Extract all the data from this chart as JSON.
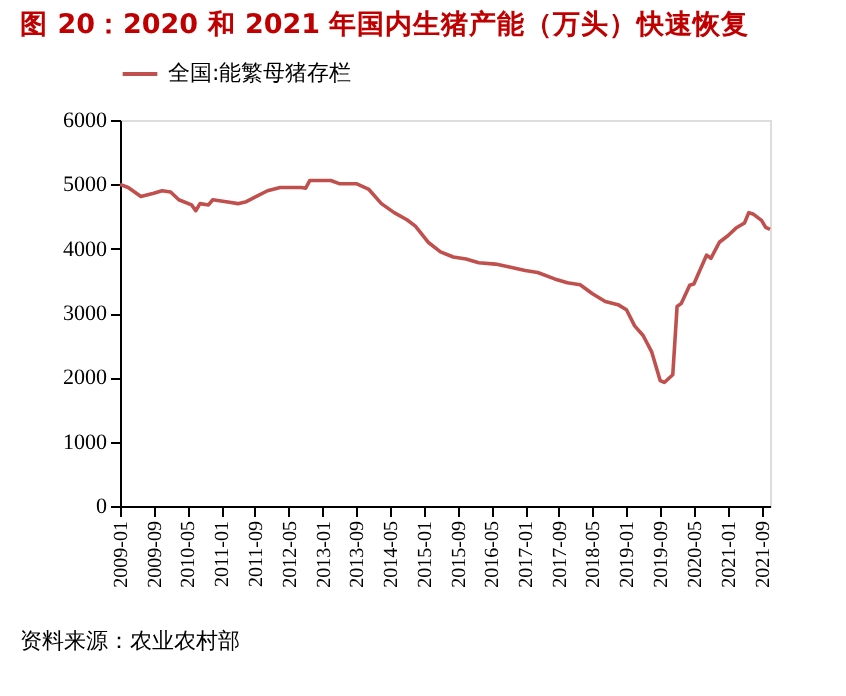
{
  "chart_data": {
    "type": "line",
    "title": "图 20：2020 和 2021 年国内生猪产能（万头）快速恢复",
    "annotations": [
      "资料来源：农业农村部"
    ],
    "x": [
      "2009-01",
      "2009-03",
      "2009-06",
      "2009-09",
      "2009-11",
      "2010-01",
      "2010-03",
      "2010-06",
      "2010-07",
      "2010-08",
      "2010-10",
      "2010-11",
      "2011-03",
      "2011-05",
      "2011-07",
      "2011-09",
      "2011-12",
      "2012-03",
      "2012-08",
      "2012-09",
      "2012-10",
      "2013-03",
      "2013-05",
      "2013-09",
      "2013-12",
      "2014-03",
      "2014-06",
      "2014-09",
      "2014-11",
      "2015-02",
      "2015-05",
      "2015-08",
      "2015-11",
      "2016-02",
      "2016-06",
      "2016-09",
      "2017-01",
      "2017-04",
      "2017-08",
      "2017-11",
      "2018-02",
      "2018-05",
      "2018-08",
      "2018-11",
      "2019-01",
      "2019-03",
      "2019-05",
      "2019-07",
      "2019-09",
      "2019-10",
      "2019-12",
      "2020-01",
      "2020-02",
      "2020-04",
      "2020-05",
      "2020-08",
      "2020-09",
      "2020-11",
      "2021-01",
      "2021-03",
      "2021-05",
      "2021-06",
      "2021-07",
      "2021-09",
      "2021-10",
      "2021-11"
    ],
    "series": [
      {
        "name": "全国:能繁母猪存栏",
        "color": "#c0504d",
        "values": [
          5000,
          4950,
          4810,
          4860,
          4900,
          4880,
          4760,
          4680,
          4590,
          4700,
          4680,
          4760,
          4720,
          4700,
          4730,
          4800,
          4900,
          4950,
          4950,
          4940,
          5060,
          5060,
          5010,
          5010,
          4920,
          4700,
          4560,
          4450,
          4350,
          4100,
          3950,
          3870,
          3840,
          3780,
          3760,
          3720,
          3660,
          3630,
          3530,
          3470,
          3440,
          3300,
          3180,
          3130,
          3050,
          2800,
          2650,
          2400,
          1950,
          1920,
          2040,
          3100,
          3150,
          3430,
          3450,
          3900,
          3850,
          4100,
          4200,
          4320,
          4400,
          4560,
          4540,
          4440,
          4330,
          4300
        ]
      }
    ],
    "xlim": [
      "2009-01",
      "2021-11"
    ],
    "xticks": [
      "2009-01",
      "2009-09",
      "2010-05",
      "2011-01",
      "2011-09",
      "2012-05",
      "2013-01",
      "2013-09",
      "2014-05",
      "2015-01",
      "2015-09",
      "2016-05",
      "2017-01",
      "2017-09",
      "2018-05",
      "2019-01",
      "2019-09",
      "2020-05",
      "2021-01",
      "2021-09"
    ],
    "ylim": [
      0,
      6000
    ],
    "yticks": [
      0,
      1000,
      2000,
      3000,
      4000,
      5000,
      6000
    ],
    "grid": false,
    "legend": "top",
    "marker": "none",
    "line_style": "solid"
  }
}
